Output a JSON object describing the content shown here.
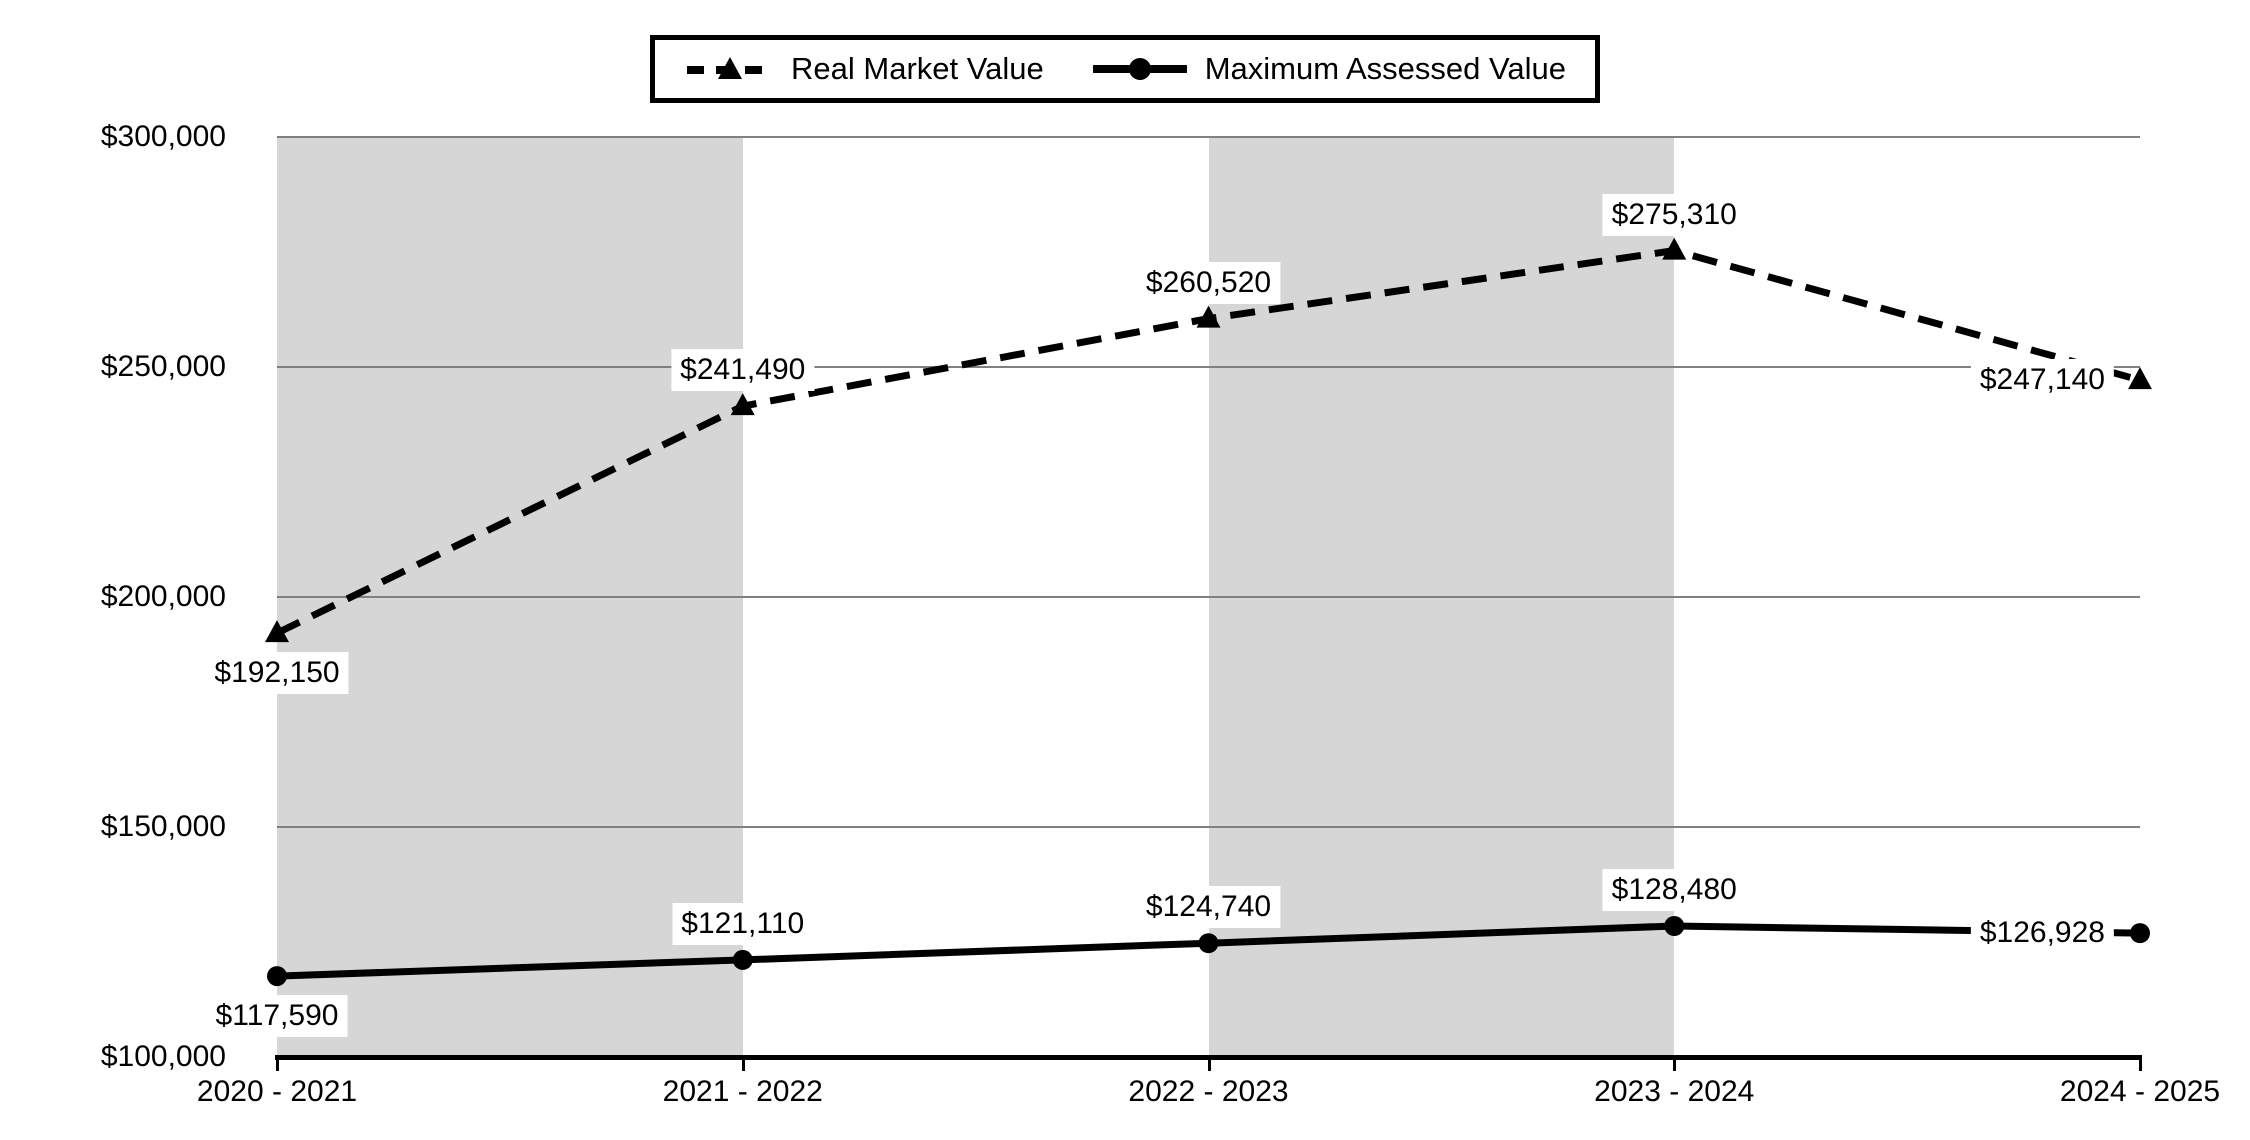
{
  "chart_data": {
    "type": "line",
    "title": "",
    "categories": [
      "2020 - 2021",
      "2021 - 2022",
      "2022 - 2023",
      "2023 - 2024",
      "2024 - 2025"
    ],
    "series": [
      {
        "name": "Real Market Value",
        "line_style": "dashed",
        "marker": "triangle",
        "values": [
          192150,
          241490,
          260520,
          275310,
          247140
        ],
        "labels": [
          "$192,150",
          "$241,490",
          "$260,520",
          "$275,310",
          "$247,140"
        ],
        "label_positions": [
          "below",
          "above",
          "above",
          "above",
          "left"
        ]
      },
      {
        "name": "Maximum Assessed Value",
        "line_style": "solid",
        "marker": "circle",
        "values": [
          117590,
          121110,
          124740,
          128480,
          126928
        ],
        "labels": [
          "$117,590",
          "$121,110",
          "$124,740",
          "$128,480",
          "$126,928"
        ],
        "label_positions": [
          "below",
          "above",
          "above",
          "above",
          "left"
        ]
      }
    ],
    "y_axis": {
      "min": 100000,
      "max": 300000,
      "tick_step": 50000,
      "tick_labels": [
        "$100,000",
        "$150,000",
        "$200,000",
        "$250,000",
        "$300,000"
      ]
    },
    "x_axis": {
      "tick_labels": [
        "2020 - 2021",
        "2021 - 2022",
        "2022 - 2023",
        "2023 - 2024",
        "2024 - 2025"
      ]
    },
    "legend": {
      "position": "top-center",
      "border": true,
      "entries": [
        "Real Market Value",
        "Maximum Assessed Value"
      ]
    },
    "shaded_band_category_pairs": [
      [
        0,
        1
      ],
      [
        2,
        3
      ]
    ],
    "grid": "horizontal",
    "colors": {
      "line": "#000000",
      "marker": "#000000",
      "band": "#d6d6d6",
      "gridline": "#808080",
      "axis": "#000000",
      "background": "#ffffff",
      "label_background": "#ffffff",
      "text": "#000000"
    }
  }
}
